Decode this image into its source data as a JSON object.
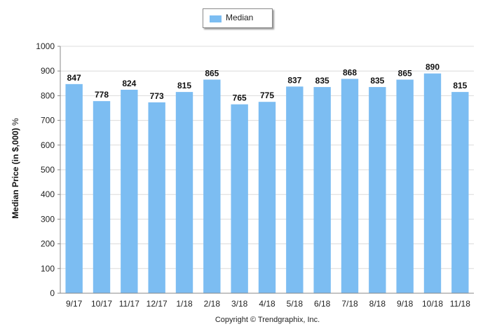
{
  "chart_data": {
    "type": "bar",
    "categories": [
      "9/17",
      "10/17",
      "11/17",
      "12/17",
      "1/18",
      "2/18",
      "3/18",
      "4/18",
      "5/18",
      "6/18",
      "7/18",
      "8/18",
      "9/18",
      "10/18",
      "11/18"
    ],
    "series": [
      {
        "name": "Median",
        "values": [
          847,
          778,
          824,
          773,
          815,
          865,
          765,
          775,
          837,
          835,
          868,
          835,
          865,
          890,
          815
        ]
      }
    ],
    "ylabel": "Median Price (in $,000)",
    "ylabel_unit": "%",
    "ylim": [
      0,
      1000
    ],
    "yticks": [
      0,
      100,
      200,
      300,
      400,
      500,
      600,
      700,
      800,
      900,
      1000
    ],
    "grid": true,
    "legend_position": "top-center",
    "bar_color": "#7cbdf2",
    "grid_color": "#dcdcdc"
  },
  "copyright": "Copyright © Trendgraphix, Inc."
}
